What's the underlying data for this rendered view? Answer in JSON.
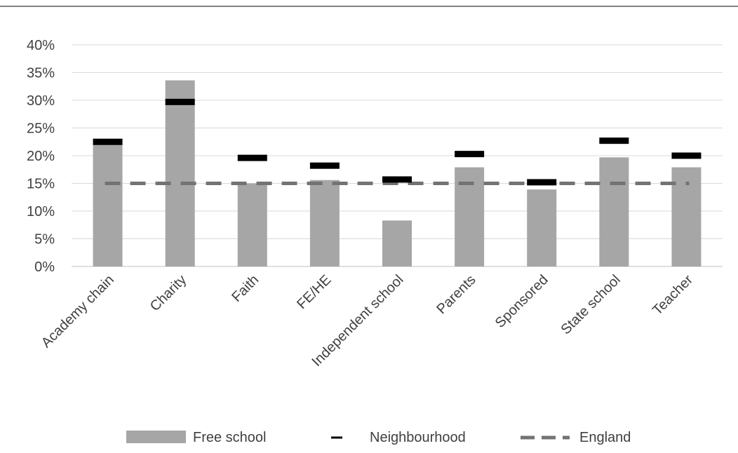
{
  "chart_data": {
    "type": "bar",
    "title": "",
    "xlabel": "",
    "ylabel": "",
    "ylim": [
      0,
      0.4
    ],
    "y_ticks": [
      0,
      0.05,
      0.1,
      0.15,
      0.2,
      0.25,
      0.3,
      0.35,
      0.4
    ],
    "y_tick_labels": [
      "0%",
      "5%",
      "10%",
      "15%",
      "20%",
      "25%",
      "30%",
      "35%",
      "40%"
    ],
    "grid": true,
    "legend_position": "bottom",
    "categories": [
      "Academy chain",
      "Charity",
      "Faith",
      "FE/HE",
      "Independent school",
      "Parents",
      "Sponsored",
      "State school",
      "Teacher"
    ],
    "series": [
      {
        "name": "Free school",
        "kind": "bar",
        "color": "#a6a6a6",
        "values": [
          0.22,
          0.336,
          0.15,
          0.156,
          0.083,
          0.179,
          0.139,
          0.197,
          0.179
        ]
      },
      {
        "name": "Neighbourhood",
        "kind": "marker",
        "color": "#000000",
        "values": [
          0.225,
          0.297,
          0.196,
          0.182,
          0.157,
          0.203,
          0.152,
          0.227,
          0.2
        ]
      },
      {
        "name": "England",
        "kind": "dashed-line",
        "color": "#737373",
        "values": [
          0.15,
          0.15,
          0.15,
          0.15,
          0.15,
          0.15,
          0.15,
          0.15,
          0.15
        ]
      }
    ]
  }
}
